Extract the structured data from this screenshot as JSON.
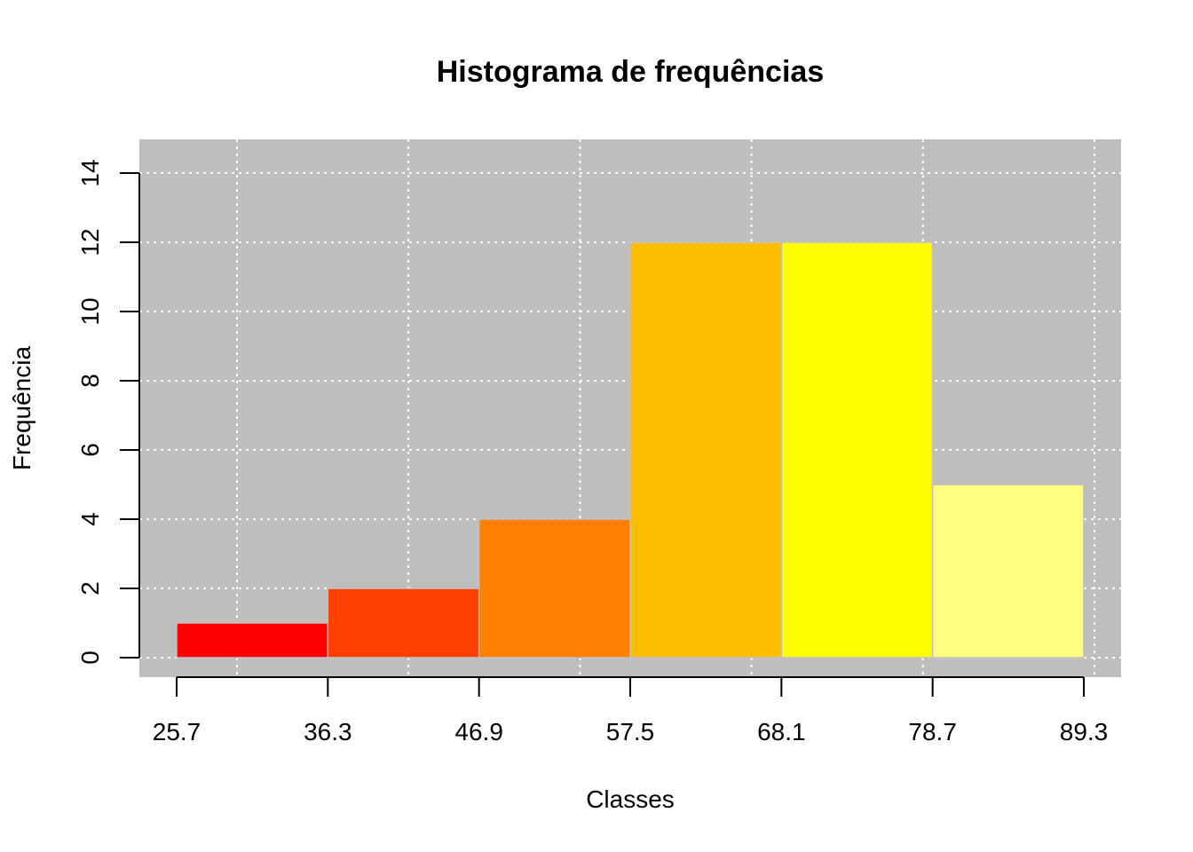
{
  "chart_data": {
    "type": "bar",
    "title": "Histograma de frequências",
    "xlabel": "Classes",
    "ylabel": "Frequência",
    "breaks": [
      25.7,
      36.3,
      46.9,
      57.5,
      68.1,
      78.7,
      89.3
    ],
    "x_tick_labels": [
      "25.7",
      "36.3",
      "46.9",
      "57.5",
      "68.1",
      "78.7",
      "89.3"
    ],
    "categories": [
      "25.7-36.3",
      "36.3-46.9",
      "46.9-57.5",
      "57.5-68.1",
      "68.1-78.7",
      "78.7-89.3"
    ],
    "values": [
      1,
      2,
      4,
      12,
      12,
      5
    ],
    "colors": [
      "#ff0000",
      "#ff4000",
      "#ff8000",
      "#ffbf00",
      "#ffff00",
      "#ffff80"
    ],
    "ylim": [
      0,
      14
    ],
    "y_ticks": [
      0,
      2,
      4,
      6,
      8,
      10,
      12,
      14
    ],
    "grid": true,
    "background_color": "#bebebe",
    "grid_color": "#ffffff"
  }
}
